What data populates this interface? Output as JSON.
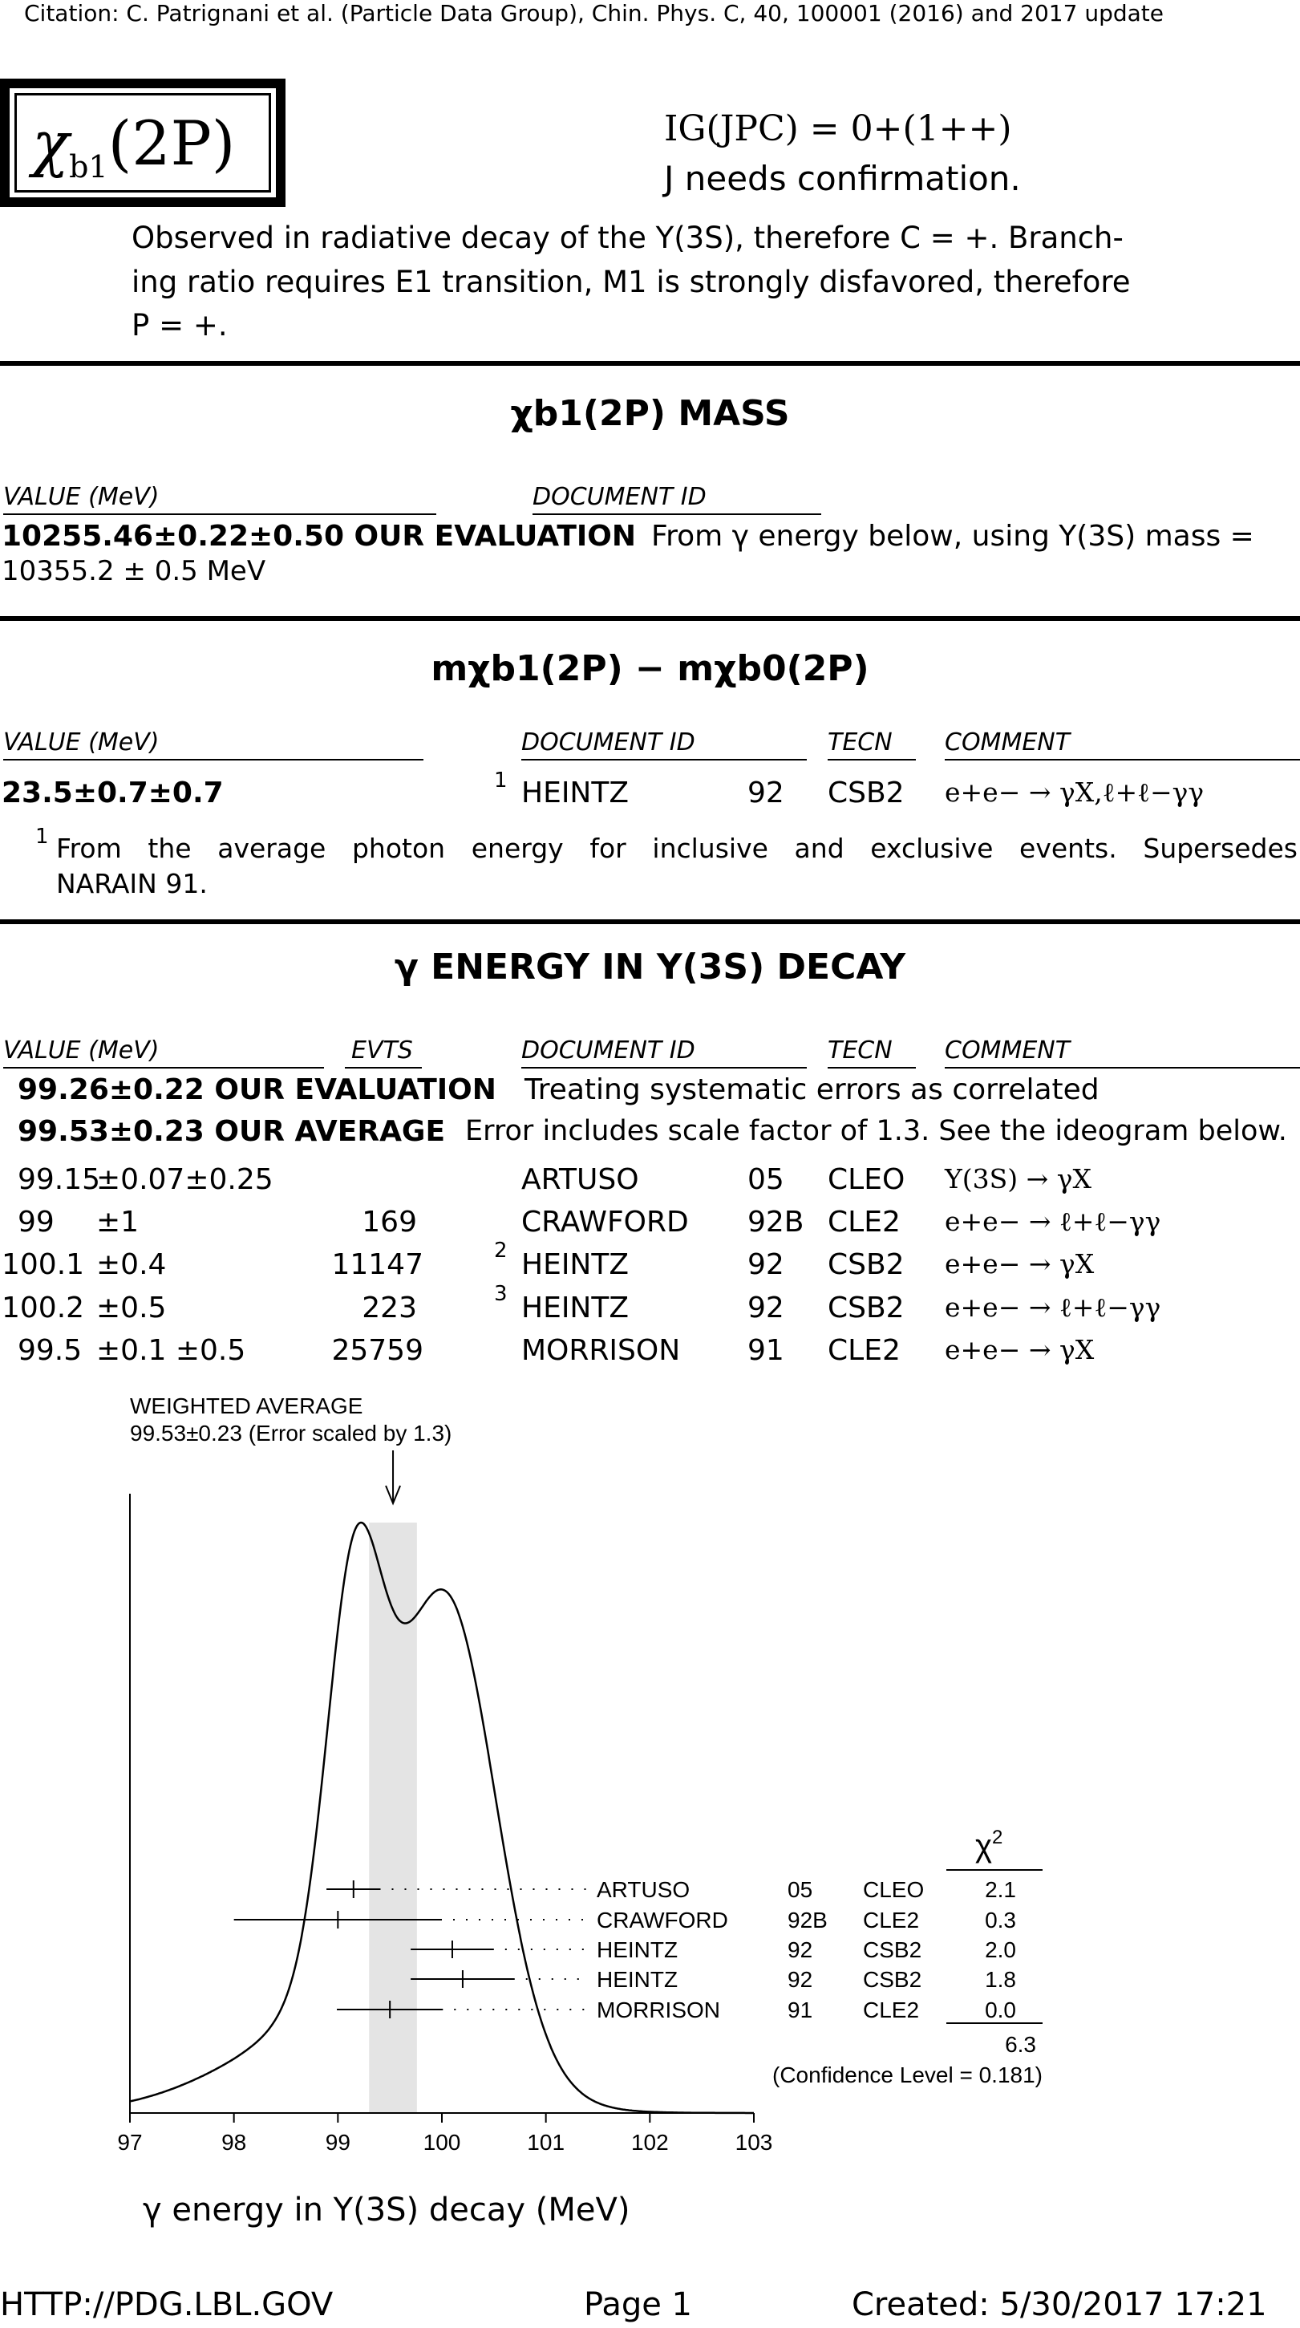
{
  "citation": "Citation: C. Patrignani et al. (Particle Data Group), Chin. Phys. C, 40, 100001 (2016) and 2017 update",
  "particle": {
    "name_symbol": "χ",
    "name_sub": "b1",
    "name_state": "(2P)",
    "quantum_numbers": "IG(JPC) = 0+(1++)",
    "confirmation": "J needs confirmation.",
    "description_lines": [
      "Observed in radiative decay of the Υ(3S), therefore C = +. Branch-",
      "ing ratio requires E1 transition, M1 is strongly disfavored, therefore",
      "P = +."
    ]
  },
  "mass_section": {
    "title": "χb1(2P) MASS",
    "col_value": "VALUE (MeV)",
    "col_doc": "DOCUMENT ID",
    "evaluation_value": "10255.46±0.22±0.50 OUR EVALUATION",
    "evaluation_note": "From γ energy below, using Υ(3S) mass =",
    "evaluation_note2": "10355.2 ± 0.5 MeV"
  },
  "diff_section": {
    "title": "mχb1(2P) − mχb0(2P)",
    "col_value": "VALUE (MeV)",
    "col_doc": "DOCUMENT ID",
    "col_tecn": "TECN",
    "col_comment": "COMMENT",
    "row": {
      "value": "23.5±0.7±0.7",
      "footnote_mark": "1",
      "doc": "HEINTZ",
      "year": "92",
      "tecn": "CSB2",
      "comment": "e+e− → γX,ℓ+ℓ−γγ"
    },
    "footnote_mark": "1",
    "footnote_line1": "From the average photon energy for inclusive and exclusive events. Supersedes",
    "footnote_line2": "NARAIN 91."
  },
  "energy_section": {
    "title": "γ ENERGY IN Υ(3S) DECAY",
    "col_value": "VALUE (MeV)",
    "col_evts": "EVTS",
    "col_doc": "DOCUMENT ID",
    "col_tecn": "TECN",
    "col_comment": "COMMENT",
    "our_evaluation": "99.26±0.22 OUR EVALUATION",
    "our_evaluation_note": "Treating systematic errors as correlated",
    "our_average": "99.53±0.23 OUR AVERAGE",
    "our_average_note": "Error includes scale factor of 1.3. See the ideogram below.",
    "rows": [
      {
        "val": "99.15",
        "err": "±0.07±0.25",
        "evts": "",
        "mark": "",
        "doc": "ARTUSO",
        "year": "05",
        "tecn": "CLEO",
        "comment": "Υ(3S) → γX"
      },
      {
        "val": "99",
        "err": "±1",
        "evts": "169",
        "mark": "",
        "doc": "CRAWFORD",
        "year": "92B",
        "tecn": "CLE2",
        "comment": "e+e− → ℓ+ℓ−γγ"
      },
      {
        "val": "100.1",
        "err": "±0.4",
        "evts": "11147",
        "mark": "2",
        "doc": "HEINTZ",
        "year": "92",
        "tecn": "CSB2",
        "comment": "e+e− → γX"
      },
      {
        "val": "100.2",
        "err": "±0.5",
        "evts": "223",
        "mark": "3",
        "doc": "HEINTZ",
        "year": "92",
        "tecn": "CSB2",
        "comment": "e+e− → ℓ+ℓ−γγ"
      },
      {
        "val": "99.5",
        "err": "±0.1 ±0.5",
        "evts": "25759",
        "mark": "",
        "doc": "MORRISON",
        "year": "91",
        "tecn": "CLE2",
        "comment": "e+e− → γX"
      }
    ]
  },
  "chart_data": {
    "type": "ideogram",
    "title": "WEIGHTED AVERAGE",
    "subtitle": "99.53±0.23 (Error scaled by 1.3)",
    "xlabel": "γ energy in Υ(3S) decay (MeV)",
    "xlim": [
      97,
      103
    ],
    "x_ticks": [
      "97",
      "98",
      "99",
      "100",
      "101",
      "102",
      "103"
    ],
    "weighted_average": 99.53,
    "average_error": 0.23,
    "chi2_header": "χ2",
    "measurements": [
      {
        "label": "ARTUSO",
        "year": "05",
        "tecn": "CLEO",
        "value": 99.15,
        "error": 0.26,
        "chi2": "2.1"
      },
      {
        "label": "CRAWFORD",
        "year": "92B",
        "tecn": "CLE2",
        "value": 99.0,
        "error": 1.0,
        "chi2": "0.3"
      },
      {
        "label": "HEINTZ",
        "year": "92",
        "tecn": "CSB2",
        "value": 100.1,
        "error": 0.4,
        "chi2": "2.0"
      },
      {
        "label": "HEINTZ",
        "year": "92",
        "tecn": "CSB2",
        "value": 100.2,
        "error": 0.5,
        "chi2": "1.8"
      },
      {
        "label": "MORRISON",
        "year": "91",
        "tecn": "CLE2",
        "value": 99.5,
        "error": 0.51,
        "chi2": "0.0"
      }
    ],
    "chi2_total": "6.3",
    "confidence_level": "(Confidence Level = 0.181)"
  },
  "footer": {
    "url": "HTTP://PDG.LBL.GOV",
    "page": "Page 1",
    "created": "Created: 5/30/2017 17:21"
  }
}
